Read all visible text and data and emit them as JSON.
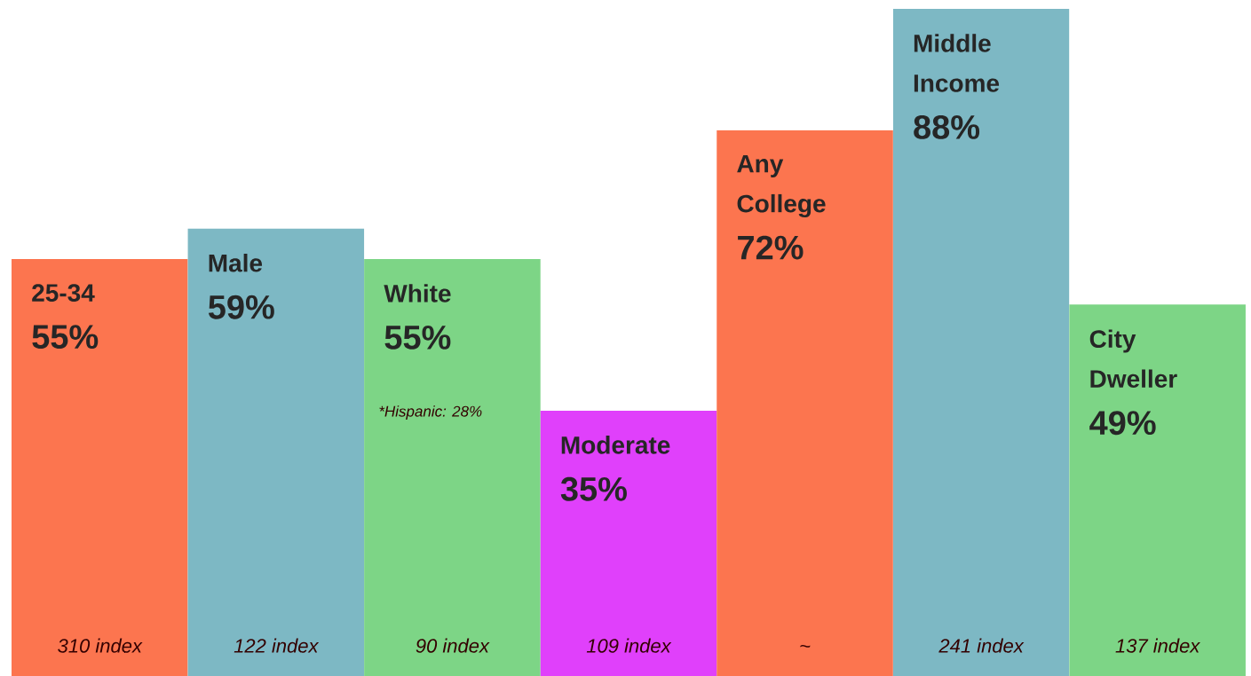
{
  "chart_data": {
    "type": "bar",
    "categories": [
      "25-34",
      "Male",
      "White",
      "Moderate",
      "Any College",
      "Middle Income",
      "City Dweller"
    ],
    "values": [
      55,
      59,
      55,
      35,
      72,
      88,
      49
    ],
    "value_labels": [
      "55%",
      "59%",
      "55%",
      "35%",
      "72%",
      "88%",
      "49%"
    ],
    "colors": [
      "#fc754f",
      "#7db8c4",
      "#7dd586",
      "#e040fb",
      "#fc754f",
      "#7db8c4",
      "#7dd586"
    ],
    "annotations": [
      "310 index",
      "122 index",
      "90 index",
      "109 index",
      "~",
      "241 index",
      "137 index",
      "*Hispanic: 28%"
    ]
  }
}
